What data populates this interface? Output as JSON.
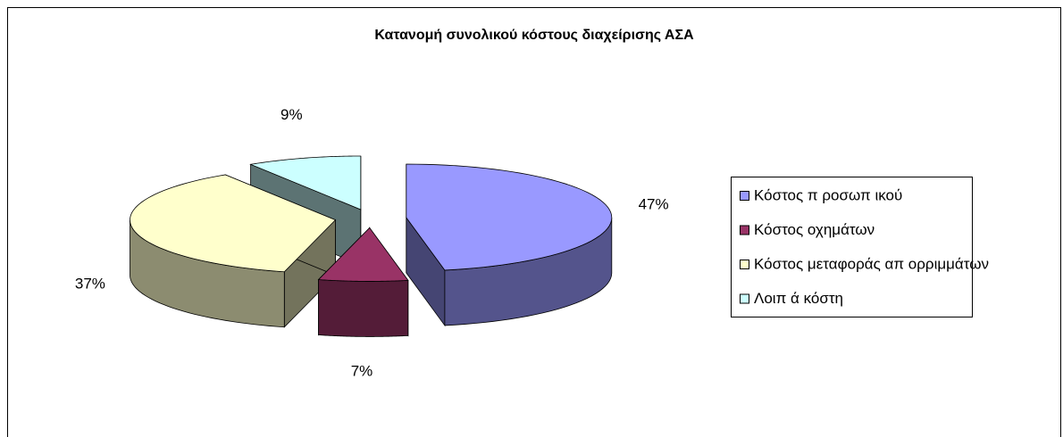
{
  "chart_data": {
    "type": "pie3d",
    "title": "Κατανομή συνολικού κόστους διαχείρισης ΑΣΑ",
    "categories": [
      "Κόστος π ροσωπ ικού",
      "Κόστος οχημάτων",
      "Κόστος μεταφοράς απ ορριμμάτων",
      "Λοιπ ά κόστη"
    ],
    "values": [
      47,
      7,
      37,
      9
    ],
    "value_labels": [
      "47%",
      "7%",
      "37%",
      "9%"
    ],
    "colors": [
      "#9999ff",
      "#993366",
      "#ffffcc",
      "#ccffff"
    ],
    "legend": "right"
  }
}
